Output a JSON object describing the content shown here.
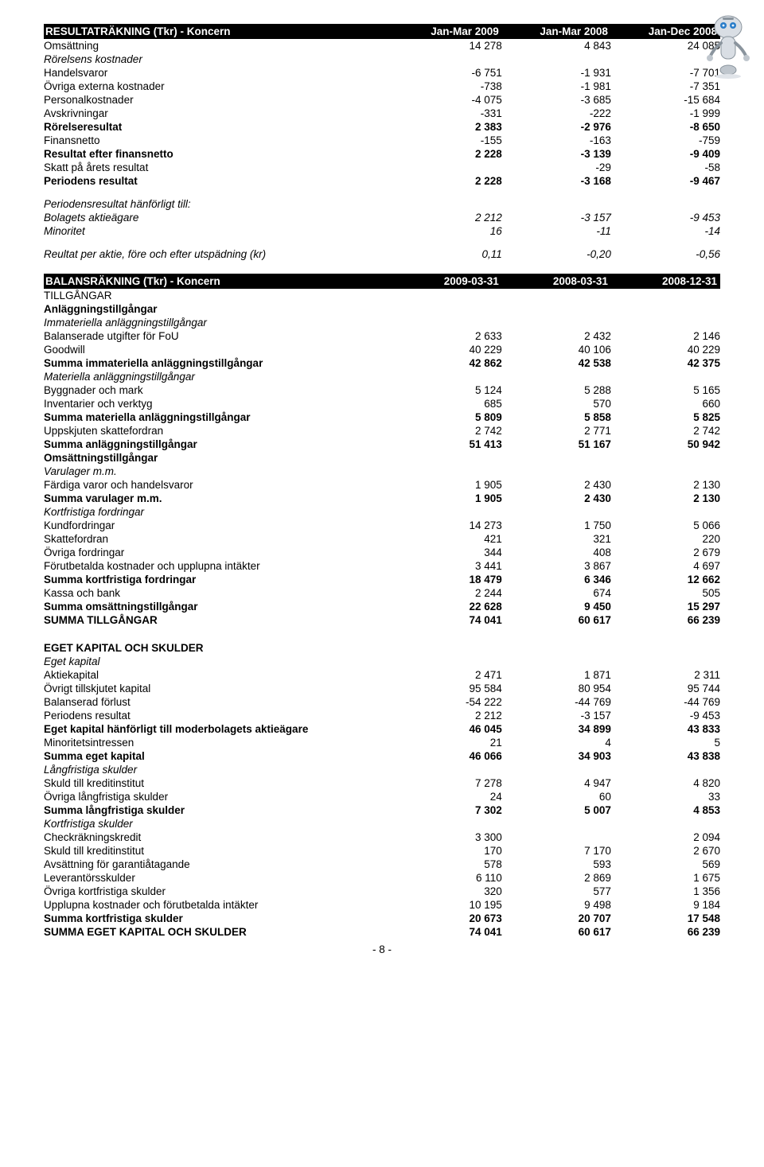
{
  "pageNumber": "- 8 -",
  "tables": [
    {
      "header": [
        "RESULTATRÄKNING (Tkr) - Koncern",
        "Jan-Mar 2009",
        "Jan-Mar 2008",
        "Jan-Dec 2008"
      ],
      "rows": [
        {
          "label": "Omsättning",
          "vals": [
            "14 278",
            "4 843",
            "24 085"
          ]
        },
        {
          "label": "Rörelsens kostnader",
          "italic": true,
          "vals": [
            "",
            "",
            ""
          ]
        },
        {
          "label": "Handelsvaror",
          "vals": [
            "-6 751",
            "-1 931",
            "-7 701"
          ]
        },
        {
          "label": "Övriga externa kostnader",
          "vals": [
            "-738",
            "-1 981",
            "-7 351"
          ]
        },
        {
          "label": "Personalkostnader",
          "vals": [
            "-4 075",
            "-3 685",
            "-15 684"
          ]
        },
        {
          "label": "Avskrivningar",
          "vals": [
            "-331",
            "-222",
            "-1 999"
          ]
        },
        {
          "label": "Rörelseresultat",
          "bold": true,
          "vals": [
            "2 383",
            "-2 976",
            "-8 650"
          ]
        },
        {
          "label": "Finansnetto",
          "vals": [
            "-155",
            "-163",
            "-759"
          ]
        },
        {
          "label": "Resultat efter finansnetto",
          "bold": true,
          "vals": [
            "2 228",
            "-3 139",
            "-9 409"
          ]
        },
        {
          "label": "Skatt på årets resultat",
          "vals": [
            "",
            "-29",
            "-58"
          ]
        },
        {
          "label": "Periodens resultat",
          "bold": true,
          "vals": [
            "2 228",
            "-3 168",
            "-9 467"
          ]
        },
        {
          "gap": true
        },
        {
          "label": "Periodensresultat hänförligt till:",
          "italic": true,
          "vals": [
            "",
            "",
            ""
          ]
        },
        {
          "label": "Bolagets aktieägare",
          "italic": true,
          "vals": [
            "2 212",
            "-3 157",
            "-9 453"
          ]
        },
        {
          "label": "Minoritet",
          "italic": true,
          "vals": [
            "16",
            "-11",
            "-14"
          ]
        },
        {
          "gap": true
        },
        {
          "label": "Reultat per aktie, före och efter utspädning (kr)",
          "italic": true,
          "vals": [
            "0,11",
            "-0,20",
            "-0,56"
          ]
        }
      ]
    },
    {
      "header": [
        "BALANSRÄKNING (Tkr) - Koncern",
        "2009-03-31",
        "2008-03-31",
        "2008-12-31"
      ],
      "rows": [
        {
          "label": "TILLGÅNGAR",
          "vals": [
            "",
            "",
            ""
          ]
        },
        {
          "label": "Anläggningstillgångar",
          "bold": true,
          "vals": [
            "",
            "",
            ""
          ]
        },
        {
          "label": "Immateriella anläggningstillgångar",
          "italic": true,
          "vals": [
            "",
            "",
            ""
          ]
        },
        {
          "label": "Balanserade utgifter för FoU",
          "vals": [
            "2 633",
            "2 432",
            "2 146"
          ]
        },
        {
          "label": "Goodwill",
          "vals": [
            "40 229",
            "40 106",
            "40 229"
          ]
        },
        {
          "label": "Summa immateriella anläggningstillgångar",
          "bold": true,
          "vals": [
            "42 862",
            "42 538",
            "42 375"
          ]
        },
        {
          "label": "Materiella anläggningstillgångar",
          "italic": true,
          "vals": [
            "",
            "",
            ""
          ]
        },
        {
          "label": "Byggnader och mark",
          "vals": [
            "5 124",
            "5 288",
            "5 165"
          ]
        },
        {
          "label": "Inventarier och verktyg",
          "vals": [
            "685",
            "570",
            "660"
          ]
        },
        {
          "label": "Summa materiella anläggningstillgångar",
          "bold": true,
          "vals": [
            "5 809",
            "5 858",
            "5 825"
          ]
        },
        {
          "label": "Uppskjuten skattefordran",
          "vals": [
            "2 742",
            "2 771",
            "2 742"
          ]
        },
        {
          "label": "Summa anläggningstillgångar",
          "bold": true,
          "vals": [
            "51 413",
            "51 167",
            "50 942"
          ]
        },
        {
          "label": "Omsättningstillgångar",
          "bold": true,
          "vals": [
            "",
            "",
            ""
          ]
        },
        {
          "label": "Varulager m.m.",
          "italic": true,
          "vals": [
            "",
            "",
            ""
          ]
        },
        {
          "label": "Färdiga varor och handelsvaror",
          "vals": [
            "1 905",
            "2 430",
            "2 130"
          ]
        },
        {
          "label": "Summa varulager m.m.",
          "bold": true,
          "vals": [
            "1 905",
            "2 430",
            "2 130"
          ]
        },
        {
          "label": "Kortfristiga fordringar",
          "italic": true,
          "vals": [
            "",
            "",
            ""
          ]
        },
        {
          "label": "Kundfordringar",
          "vals": [
            "14 273",
            "1 750",
            "5 066"
          ]
        },
        {
          "label": "Skattefordran",
          "vals": [
            "421",
            "321",
            "220"
          ]
        },
        {
          "label": "Övriga fordringar",
          "vals": [
            "344",
            "408",
            "2 679"
          ]
        },
        {
          "label": "Förutbetalda kostnader och upplupna intäkter",
          "vals": [
            "3 441",
            "3 867",
            "4 697"
          ]
        },
        {
          "label": "Summa kortfristiga fordringar",
          "bold": true,
          "vals": [
            "18 479",
            "6 346",
            "12 662"
          ]
        },
        {
          "label": "Kassa och bank",
          "vals": [
            "2 244",
            "674",
            "505"
          ]
        },
        {
          "label": "Summa omsättningstillgångar",
          "bold": true,
          "vals": [
            "22 628",
            "9 450",
            "15 297"
          ]
        },
        {
          "label": "SUMMA TILLGÅNGAR",
          "bold": true,
          "vals": [
            "74 041",
            "60 617",
            "66 239"
          ]
        },
        {
          "biggap": true
        },
        {
          "label": "EGET KAPITAL OCH SKULDER",
          "bold": true,
          "vals": [
            "",
            "",
            ""
          ]
        },
        {
          "label": "Eget kapital",
          "italic": true,
          "vals": [
            "",
            "",
            ""
          ]
        },
        {
          "label": "Aktiekapital",
          "vals": [
            "2 471",
            "1 871",
            "2 311"
          ]
        },
        {
          "label": "Övrigt tillskjutet kapital",
          "vals": [
            "95 584",
            "80 954",
            "95 744"
          ]
        },
        {
          "label": "Balanserad förlust",
          "vals": [
            "-54 222",
            "-44 769",
            "-44 769"
          ]
        },
        {
          "label": "Periodens resultat",
          "vals": [
            "2 212",
            "-3 157",
            "-9 453"
          ]
        },
        {
          "label": "Eget kapital hänförligt till moderbolagets aktieägare",
          "bold": true,
          "vals": [
            "46 045",
            "34 899",
            "43 833"
          ]
        },
        {
          "label": "Minoritetsintressen",
          "vals": [
            "21",
            "4",
            "5"
          ]
        },
        {
          "label": "Summa eget kapital",
          "bold": true,
          "vals": [
            "46 066",
            "34 903",
            "43 838"
          ]
        },
        {
          "label": "Långfristiga skulder",
          "italic": true,
          "vals": [
            "",
            "",
            ""
          ]
        },
        {
          "label": "Skuld till kreditinstitut",
          "vals": [
            "7 278",
            "4 947",
            "4 820"
          ]
        },
        {
          "label": "Övriga långfristiga skulder",
          "vals": [
            "24",
            "60",
            "33"
          ]
        },
        {
          "label": "Summa långfristiga skulder",
          "bold": true,
          "vals": [
            "7 302",
            "5 007",
            "4 853"
          ]
        },
        {
          "label": "Kortfristiga skulder",
          "italic": true,
          "vals": [
            "",
            "",
            ""
          ]
        },
        {
          "label": "Checkräkningskredit",
          "vals": [
            "3 300",
            "",
            "2 094"
          ]
        },
        {
          "label": "Skuld till kreditinstitut",
          "vals": [
            "170",
            "7 170",
            "2 670"
          ]
        },
        {
          "label": "Avsättning för garantiåtagande",
          "vals": [
            "578",
            "593",
            "569"
          ]
        },
        {
          "label": "Leverantörsskulder",
          "vals": [
            "6 110",
            "2 869",
            "1 675"
          ]
        },
        {
          "label": "Övriga kortfristiga skulder",
          "vals": [
            "320",
            "577",
            "1 356"
          ]
        },
        {
          "label": "Upplupna kostnader och förutbetalda intäkter",
          "vals": [
            "10 195",
            "9 498",
            "9 184"
          ]
        },
        {
          "label": "Summa kortfristiga skulder",
          "bold": true,
          "vals": [
            "20 673",
            "20 707",
            "17 548"
          ]
        },
        {
          "label": "SUMMA EGET KAPITAL OCH SKULDER",
          "bold": true,
          "vals": [
            "74 041",
            "60 617",
            "66 239"
          ]
        }
      ]
    }
  ]
}
